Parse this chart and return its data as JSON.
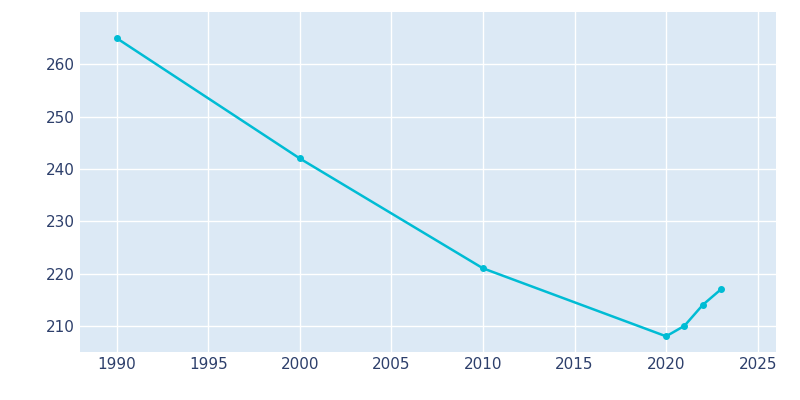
{
  "x": [
    1990,
    2000,
    2010,
    2020,
    2021,
    2022,
    2023
  ],
  "y": [
    265,
    242,
    221,
    208,
    210,
    214,
    217
  ],
  "line_color": "#00bcd4",
  "marker": "o",
  "marker_size": 4,
  "line_width": 1.8,
  "background_color": "#ffffff",
  "plot_bg_color": "#dce9f5",
  "grid_color": "#ffffff",
  "tick_color": "#2d3f6b",
  "xlim": [
    1988,
    2026
  ],
  "ylim": [
    205,
    270
  ],
  "xticks": [
    1990,
    1995,
    2000,
    2005,
    2010,
    2015,
    2020,
    2025
  ],
  "yticks": [
    210,
    220,
    230,
    240,
    250,
    260
  ],
  "tick_label_fontsize": 11,
  "figsize": [
    8.0,
    4.0
  ],
  "dpi": 100
}
